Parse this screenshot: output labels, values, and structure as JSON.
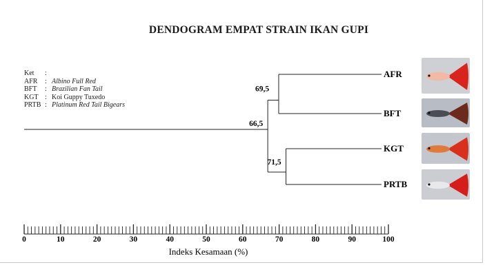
{
  "title": "DENDOGRAM EMPAT STRAIN IKAN GUPI",
  "legend": {
    "header_code": "Ket",
    "header_sep": ":",
    "items": [
      {
        "code": "AFR",
        "sep": ":",
        "name": "Albino Full Red",
        "italic": true
      },
      {
        "code": "BFT",
        "sep": ":",
        "name": "Brazilian Fan Tail",
        "italic": true
      },
      {
        "code": "KGT",
        "sep": ":",
        "name": "Koi Guppy Tuxedo",
        "italic": false
      },
      {
        "code": "PRTB",
        "sep": ":",
        "name": "Platinum Red Tail Bigears",
        "italic": true
      }
    ]
  },
  "leaves": [
    "AFR",
    "BFT",
    "KGT",
    "PRTB"
  ],
  "nodes": [
    {
      "label": "69,5",
      "value": 69.5,
      "children": [
        "AFR",
        "BFT"
      ]
    },
    {
      "label": "71,5",
      "value": 71.5,
      "children": [
        "KGT",
        "PRTB"
      ]
    },
    {
      "label": "66,5",
      "value": 66.5,
      "children": [
        "node-0",
        "node-1"
      ]
    }
  ],
  "axis": {
    "label": "Indeks Kesamaan (%)",
    "min": 0,
    "max": 100,
    "tick_labels": [
      "0",
      "10",
      "20",
      "30",
      "40",
      "50",
      "60",
      "70",
      "80",
      "90",
      "100"
    ],
    "minor_step": 1
  },
  "photos": [
    {
      "leaf": "AFR",
      "icon": "guppy-albino-full-red-photo",
      "body_color": "#f2b9a6",
      "tail_color": "#d8241c",
      "bg": "#cfd0d4"
    },
    {
      "leaf": "BFT",
      "icon": "guppy-brazilian-fan-tail-photo",
      "body_color": "#4a4d55",
      "tail_color": "#6b2a1c",
      "bg": "#b8bcc4"
    },
    {
      "leaf": "KGT",
      "icon": "guppy-koi-tuxedo-photo",
      "body_color": "#e07a3a",
      "tail_color": "#d8301c",
      "bg": "#c3c6cc"
    },
    {
      "leaf": "PRTB",
      "icon": "guppy-platinum-red-tail-photo",
      "body_color": "#e9e9ec",
      "tail_color": "#d51e1a",
      "bg": "#cbcdd2"
    }
  ]
}
